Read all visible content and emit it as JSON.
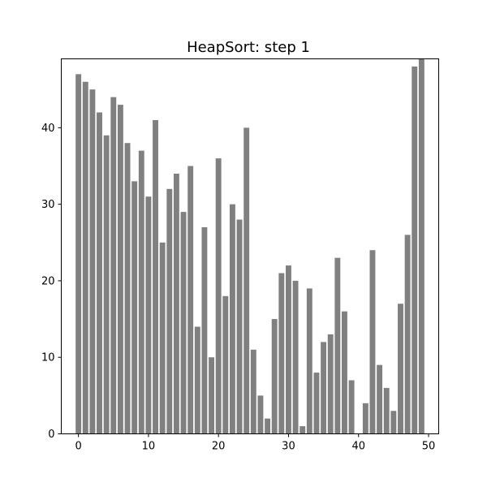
{
  "chart_data": {
    "type": "bar",
    "title": "HeapSort: step 1",
    "xlabel": "",
    "ylabel": "",
    "bar_color": "#808080",
    "x": [
      0,
      1,
      2,
      3,
      4,
      5,
      6,
      7,
      8,
      9,
      10,
      11,
      12,
      13,
      14,
      15,
      16,
      17,
      18,
      19,
      20,
      21,
      22,
      23,
      24,
      25,
      26,
      27,
      28,
      29,
      30,
      31,
      32,
      33,
      34,
      35,
      36,
      37,
      38,
      39,
      40,
      41,
      42,
      43,
      44,
      45,
      46,
      47,
      48,
      49
    ],
    "values": [
      47,
      46,
      45,
      42,
      39,
      44,
      43,
      38,
      33,
      37,
      31,
      41,
      25,
      32,
      34,
      29,
      35,
      14,
      27,
      10,
      36,
      18,
      30,
      28,
      40,
      11,
      5,
      2,
      15,
      21,
      22,
      20,
      1,
      19,
      8,
      12,
      13,
      23,
      16,
      7,
      0,
      4,
      24,
      9,
      6,
      3,
      17,
      26,
      48,
      49
    ],
    "xlim": [
      -2.45,
      51.45
    ],
    "ylim": [
      0,
      49
    ],
    "xticks": [
      0,
      10,
      20,
      30,
      40,
      50
    ],
    "yticks": [
      0,
      10,
      20,
      30,
      40
    ],
    "grid": false
  }
}
